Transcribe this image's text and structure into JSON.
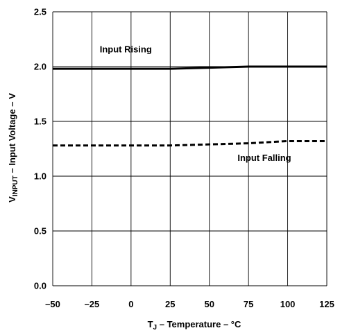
{
  "chart_data": {
    "type": "line",
    "title": "",
    "xlabel": {
      "prefix": "T",
      "sub": "J",
      "suffix": " – Temperature – °C"
    },
    "ylabel": {
      "prefix": "V",
      "sub": "INPUT",
      "suffix": " – Input Voltage – V"
    },
    "xlim": [
      -50,
      125
    ],
    "ylim": [
      0,
      2.5
    ],
    "x_ticks": [
      -50,
      -25,
      0,
      25,
      50,
      75,
      100,
      125
    ],
    "x_tick_labels": [
      "–50",
      "–25",
      "0",
      "25",
      "50",
      "75",
      "100",
      "125"
    ],
    "y_ticks": [
      0,
      0.5,
      1.0,
      1.5,
      2.0,
      2.5
    ],
    "y_tick_labels": [
      "0.0",
      "0.5",
      "1.0",
      "1.5",
      "2.0",
      "2.5"
    ],
    "grid": true,
    "series": [
      {
        "name": "Input Rising",
        "style": "solid",
        "color": "#000000",
        "x": [
          -50,
          -25,
          0,
          25,
          50,
          75,
          100,
          125
        ],
        "y": [
          1.98,
          1.98,
          1.98,
          1.98,
          1.99,
          2.0,
          2.0,
          2.0
        ]
      },
      {
        "name": "Input Falling",
        "style": "dashed",
        "color": "#000000",
        "x": [
          -50,
          -25,
          0,
          25,
          50,
          75,
          100,
          110,
          125
        ],
        "y": [
          1.28,
          1.28,
          1.28,
          1.28,
          1.29,
          1.3,
          1.32,
          1.32,
          1.32
        ]
      }
    ],
    "annotations": [
      {
        "text": "Input Rising",
        "x": -20,
        "y": 2.13
      },
      {
        "text": "Input Falling",
        "x": 68,
        "y": 1.14
      }
    ]
  }
}
